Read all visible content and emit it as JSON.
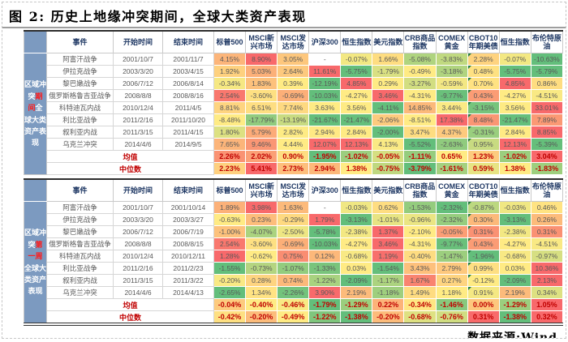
{
  "title": "图 2: 历史上地缘冲突期间，全球大类资产表现",
  "source_label": "数据来源:Wind",
  "colors": {
    "heat_min_green": "#63BE7B",
    "heat_mid_yellow": "#FFEB84",
    "heat_max_red": "#F8696B",
    "sidebar_bg": "#7C9AC0",
    "sidebar_highlight_red": "#FF1A1A",
    "header_text": "#1F3864",
    "cell_text": "#595959",
    "summary_text": "#C00000"
  },
  "columns": [
    "事件",
    "开始时间",
    "结束时间",
    "标普500",
    "MSCI新兴市场",
    "MSCI发达市场",
    "沪深300",
    "恒生指数",
    "美元指数",
    "CRB商品指数",
    "COMEX黄金",
    "CBOT10年期美债",
    "恒生指数",
    "布伦特原油"
  ],
  "tables": [
    {
      "sidebar": {
        "pre": "区域冲突",
        "highlight": "期间",
        "post": "全球大类资产表现"
      },
      "rows": [
        {
          "event": "阿富汗战争",
          "start": "2001/10/7",
          "end": "2001/11/7",
          "values": [
            "4.15%",
            "8.90%",
            "3.05%",
            "-",
            "-0.07%",
            "1.66%",
            "-5.08%",
            "-3.83%",
            "2.28%",
            "-0.07%",
            "-10.63%"
          ]
        },
        {
          "event": "伊拉克战争",
          "start": "2003/3/20",
          "end": "2003/4/15",
          "values": [
            "1.92%",
            "5.03%",
            "2.64%",
            "11.61%",
            "-5.75%",
            "-1.79%",
            "-0.49%",
            "-3.18%",
            "0.48%",
            "-5.75%",
            "-5.79%"
          ]
        },
        {
          "event": "黎巴嫩战争",
          "start": "2006/7/12",
          "end": "2006/8/14",
          "values": [
            "-0.34%",
            "1.83%",
            "0.39%",
            "-12.19%",
            "4.85%",
            "0.29%",
            "-3.27%",
            "-0.59%",
            "0.70%",
            "4.85%",
            "0.86%"
          ]
        },
        {
          "event": "俄罗斯格鲁吉亚战争",
          "start": "2008/8/8",
          "end": "2008/8/16",
          "values": [
            "2.54%",
            "-3.60%",
            "-0.69%",
            "-10.03%",
            "-4.27%",
            "3.46%",
            "-4.31%",
            "-9.77%",
            "0.43%",
            "-4.27%",
            "-4.51%"
          ]
        },
        {
          "event": "科特迪瓦内战",
          "start": "2010/12/4",
          "end": "2011/4/5",
          "values": [
            "8.81%",
            "6.51%",
            "7.74%",
            "3.63%",
            "3.56%",
            "-4.11%",
            "14.85%",
            "3.44%",
            "-3.15%",
            "3.56%",
            "33.01%"
          ]
        },
        {
          "event": "利比亚战争",
          "start": "2011/2/16",
          "end": "2011/10/20",
          "values": [
            "-8.48%",
            "-17.79%",
            "-13.19%",
            "-21.67%",
            "-21.47%",
            "-2.06%",
            "-8.51%",
            "17.38%",
            "8.48%",
            "-21.47%",
            "7.89%"
          ]
        },
        {
          "event": "叙利亚内战",
          "start": "2011/3/15",
          "end": "2011/4/15",
          "values": [
            "1.80%",
            "5.79%",
            "2.82%",
            "2.94%",
            "2.84%",
            "-2.00%",
            "3.47%",
            "4.37%",
            "-0.31%",
            "2.84%",
            "8.85%"
          ]
        },
        {
          "event": "乌克兰冲突",
          "start": "2014/4/6",
          "end": "2014/9/5",
          "values": [
            "7.65%",
            "9.46%",
            "4.44%",
            "12.07%",
            "12.13%",
            "4.13%",
            "-5.52%",
            "-2.63%",
            "0.95%",
            "12.13%",
            "-5.39%"
          ]
        }
      ],
      "summary": [
        {
          "label": "均值",
          "values": [
            "2.26%",
            "2.02%",
            "0.90%",
            "-1.95%",
            "-1.02%",
            "-0.05%",
            "-1.11%",
            "0.65%",
            "1.23%",
            "-1.02%",
            "3.04%"
          ]
        },
        {
          "label": "中位数",
          "values": [
            "2.23%",
            "5.41%",
            "2.73%",
            "2.94%",
            "1.38%",
            "-0.75%",
            "-3.79%",
            "-1.61%",
            "0.59%",
            "1.38%",
            "-1.83%"
          ]
        }
      ]
    },
    {
      "sidebar": {
        "pre": "区域冲突",
        "highlight": "第一周",
        "post": "全球大类资产表现"
      },
      "rows": [
        {
          "event": "阿富汗战争",
          "start": "2001/10/7",
          "end": "2001/10/14",
          "values": [
            "1.89%",
            "3.98%",
            "1.63%",
            "-",
            "-0.03%",
            "0.62%",
            "-1.53%",
            "-2.32%",
            "-0.87%",
            "-0.03%",
            "0.46%"
          ]
        },
        {
          "event": "伊拉克战争",
          "start": "2003/3/20",
          "end": "2003/3/27",
          "values": [
            "-0.63%",
            "0.23%",
            "-0.29%",
            "1.79%",
            "-3.13%",
            "-1.01%",
            "-0.96%",
            "-2.32%",
            "0.30%",
            "-3.13%",
            "0.26%"
          ]
        },
        {
          "event": "黎巴嫩战争",
          "start": "2006/7/12",
          "end": "2006/7/19",
          "values": [
            "-1.00%",
            "-4.07%",
            "-2.50%",
            "-5.78%",
            "-2.38%",
            "1.37%",
            "-2.10%",
            "-0.05%",
            "0.31%",
            "-2.38%",
            "0.31%"
          ]
        },
        {
          "event": "俄罗斯格鲁吉亚战争",
          "start": "2008/8/8",
          "end": "2008/8/15",
          "values": [
            "2.54%",
            "-3.60%",
            "-0.69%",
            "-10.03%",
            "-4.27%",
            "3.46%",
            "-4.31%",
            "-9.77%",
            "0.43%",
            "-4.27%",
            "-4.51%"
          ]
        },
        {
          "event": "科特迪瓦内战",
          "start": "2010/12/4",
          "end": "2010/12/11",
          "values": [
            "1.28%",
            "-0.62%",
            "0.75%",
            "0.12%",
            "-0.68%",
            "1.19%",
            "-0.40%",
            "-1.47%",
            "-1.96%",
            "-0.68%",
            "-0.97%"
          ]
        },
        {
          "event": "利比亚战争",
          "start": "2011/2/16",
          "end": "2011/2/23",
          "values": [
            "-1.55%",
            "-0.73%",
            "-1.07%",
            "-1.33%",
            "0.03%",
            "-1.54%",
            "3.43%",
            "2.79%",
            "0.99%",
            "0.03%",
            "10.36%"
          ]
        },
        {
          "event": "叙利亚内战",
          "start": "2011/3/15",
          "end": "2011/3/22",
          "values": [
            "-0.20%",
            "0.28%",
            "0.74%",
            "-1.22%",
            "-2.09%",
            "-1.17%",
            "1.67%",
            "0.27%",
            "-0.12%",
            "-2.09%",
            "2.13%"
          ]
        },
        {
          "event": "乌克兰冲突",
          "start": "2014/4/6",
          "end": "2014/4/13",
          "values": [
            "-2.65%",
            "1.34%",
            "-2.26%",
            "3.90%",
            "2.19%",
            "-1.18%",
            "1.49%",
            "1.18%",
            "0.91%",
            "2.19%",
            "0.34%"
          ]
        }
      ],
      "summary": [
        {
          "label": "均值",
          "values": [
            "-0.04%",
            "-0.40%",
            "-0.46%",
            "-1.79%",
            "-1.29%",
            "0.22%",
            "-0.34%",
            "-1.46%",
            "0.00%",
            "-1.29%",
            "1.05%"
          ]
        },
        {
          "label": "中位数",
          "values": [
            "-0.42%",
            "-0.20%",
            "-0.49%",
            "-1.22%",
            "-1.38%",
            "-0.20%",
            "-0.68%",
            "-0.76%",
            "0.31%",
            "-1.38%",
            "0.32%"
          ]
        }
      ]
    }
  ]
}
